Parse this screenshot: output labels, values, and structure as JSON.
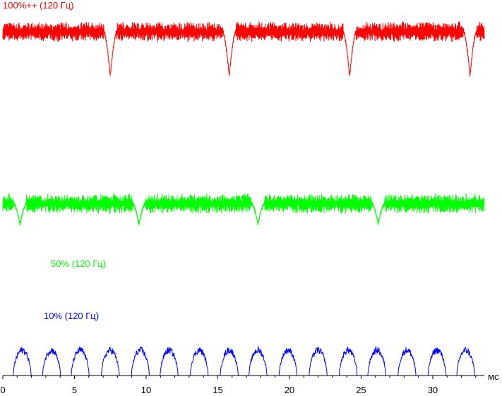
{
  "chart_data": {
    "type": "line",
    "title": "",
    "xlabel": "мс",
    "ylabel": "",
    "xlim": [
      0,
      33.6
    ],
    "x_ticks": [
      0,
      5,
      10,
      15,
      20,
      25,
      30
    ],
    "x_tick_labels": [
      "0",
      "5",
      "10",
      "15",
      "20",
      "25",
      "30"
    ],
    "grid": false,
    "legend": "none",
    "series": [
      {
        "name": "100%++ (120 Гц)",
        "color": "#ff0000",
        "baseline_relative": 1.0,
        "flicker_dips_ms": [
          7.5,
          15.8,
          24.2,
          32.6
        ],
        "dip_depth_relative": 0.13
      },
      {
        "name": "50% (120 Гц)",
        "color": "#00ff00",
        "baseline_relative": 0.5,
        "flicker_dips_ms": [
          1.2,
          9.5,
          17.8,
          26.2
        ],
        "dip_depth_relative": 0.06
      },
      {
        "name": "10% (120 Гц)",
        "color": "#0000ff",
        "baseline_relative": 0.0,
        "peak_relative": 0.08,
        "pulse_centers_ms": [
          1.35,
          3.4,
          5.4,
          7.5,
          9.6,
          11.6,
          13.7,
          15.8,
          17.8,
          19.9,
          22.0,
          24.1,
          26.1,
          28.2,
          30.3,
          32.3
        ]
      }
    ]
  }
}
